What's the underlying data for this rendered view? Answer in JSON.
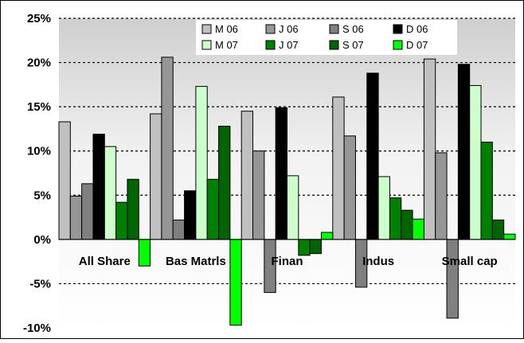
{
  "chart_data": {
    "type": "bar",
    "title": "",
    "xlabel": "",
    "ylabel": "",
    "ylim": [
      -0.1,
      0.25
    ],
    "yticks": [
      {
        "value": -0.1,
        "label": "-10%"
      },
      {
        "value": -0.05,
        "label": "-5%"
      },
      {
        "value": 0.0,
        "label": "0%"
      },
      {
        "value": 0.05,
        "label": "5%"
      },
      {
        "value": 0.1,
        "label": "10%"
      },
      {
        "value": 0.15,
        "label": "15%"
      },
      {
        "value": 0.2,
        "label": "20%"
      },
      {
        "value": 0.25,
        "label": "25%"
      }
    ],
    "grid": "horizontal-dotted",
    "legend_position": "top-right",
    "categories": [
      "All Share",
      "Bas Matrls",
      "Finan",
      "Indus",
      "Small cap"
    ],
    "series": [
      {
        "name": "M 06",
        "color": "#C0C0C0",
        "values": [
          0.133,
          0.142,
          0.145,
          0.161,
          0.204
        ]
      },
      {
        "name": "J 06",
        "color": "#969696",
        "values": [
          0.049,
          0.206,
          0.1,
          0.117,
          0.098
        ]
      },
      {
        "name": "S 06",
        "color": "#808080",
        "values": [
          0.063,
          0.022,
          -0.06,
          -0.054,
          -0.089
        ]
      },
      {
        "name": "D 06",
        "color": "#000000",
        "values": [
          0.119,
          0.055,
          0.149,
          0.188,
          0.198
        ]
      },
      {
        "name": "M 07",
        "color": "#CCFFCC",
        "values": [
          0.105,
          0.173,
          0.072,
          0.071,
          0.174
        ]
      },
      {
        "name": "J 07",
        "color": "#008000",
        "values": [
          0.042,
          0.068,
          -0.018,
          0.047,
          0.11
        ]
      },
      {
        "name": "S 07",
        "color": "#006400",
        "values": [
          0.068,
          0.128,
          -0.016,
          0.033,
          0.022
        ]
      },
      {
        "name": "D 07",
        "color": "#00FF00",
        "values": [
          -0.03,
          -0.097,
          0.008,
          0.023,
          0.006
        ]
      }
    ]
  }
}
